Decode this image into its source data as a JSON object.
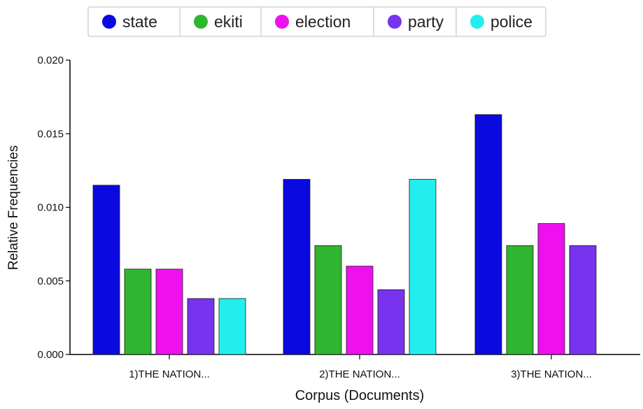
{
  "chart_data": {
    "type": "bar",
    "xlabel": "Corpus (Documents)",
    "ylabel": "Relative Frequencies",
    "ylim": [
      0,
      0.02
    ],
    "yticks": [
      "0.000",
      "0.005",
      "0.010",
      "0.015",
      "0.020"
    ],
    "categories": [
      "1)THE NATION...",
      "2)THE NATION...",
      "3)THE NATION..."
    ],
    "legend_position": "top",
    "series": [
      {
        "name": "state",
        "color": "#0a0ae0",
        "values": [
          0.0115,
          0.0119,
          0.0163
        ]
      },
      {
        "name": "ekiti",
        "color": "#30b530",
        "values": [
          0.0058,
          0.0074,
          0.0074
        ]
      },
      {
        "name": "election",
        "color": "#ee10ee",
        "values": [
          0.0058,
          0.006,
          0.0089
        ]
      },
      {
        "name": "party",
        "color": "#7733ee",
        "values": [
          0.0038,
          0.0044,
          0.0074
        ]
      },
      {
        "name": "police",
        "color": "#22eeee",
        "values": [
          0.0038,
          0.0119,
          null
        ]
      }
    ]
  }
}
